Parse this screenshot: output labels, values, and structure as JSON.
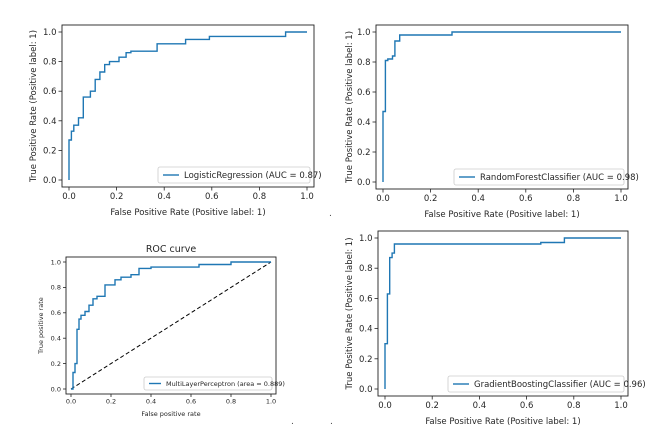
{
  "chart_data": [
    {
      "type": "line",
      "title": "",
      "xlabel": "False Positive Rate (Positive label: 1)",
      "ylabel": "True Positive Rate (Positive label: 1)",
      "xlim": [
        0,
        1
      ],
      "ylim": [
        0,
        1
      ],
      "xticks": [
        "0.0",
        "0.2",
        "0.4",
        "0.6",
        "0.8",
        "1.0"
      ],
      "yticks": [
        "0.0",
        "0.2",
        "0.4",
        "0.6",
        "0.8",
        "1.0"
      ],
      "grid": false,
      "legend_position": "lower-right",
      "series": [
        {
          "name": "LogisticRegression (AUC = 0.87)",
          "color": "#1f77b4",
          "x": [
            0,
            0,
            0.01,
            0.01,
            0.02,
            0.02,
            0.04,
            0.04,
            0.06,
            0.06,
            0.09,
            0.09,
            0.11,
            0.11,
            0.13,
            0.13,
            0.15,
            0.15,
            0.17,
            0.17,
            0.21,
            0.21,
            0.24,
            0.24,
            0.26,
            0.26,
            0.37,
            0.37,
            0.49,
            0.49,
            0.59,
            0.59,
            0.91,
            0.91,
            1.0
          ],
          "y": [
            0,
            0.27,
            0.27,
            0.33,
            0.33,
            0.37,
            0.37,
            0.42,
            0.42,
            0.56,
            0.56,
            0.6,
            0.6,
            0.68,
            0.68,
            0.73,
            0.73,
            0.78,
            0.78,
            0.8,
            0.8,
            0.83,
            0.83,
            0.86,
            0.86,
            0.87,
            0.87,
            0.92,
            0.92,
            0.95,
            0.95,
            0.97,
            0.97,
            1.0,
            1.0
          ]
        }
      ]
    },
    {
      "type": "line",
      "title": "",
      "xlabel": "False Positive Rate (Positive label: 1)",
      "ylabel": "True Positive Rate (Positive label: 1)",
      "xlim": [
        0,
        1
      ],
      "ylim": [
        0,
        1
      ],
      "xticks": [
        "0.0",
        "0.2",
        "0.4",
        "0.6",
        "0.8",
        "1.0"
      ],
      "yticks": [
        "0.0",
        "0.2",
        "0.4",
        "0.6",
        "0.8",
        "1.0"
      ],
      "grid": false,
      "legend_position": "lower-right",
      "series": [
        {
          "name": "RandomForestClassifier (AUC = 0.98)",
          "color": "#1f77b4",
          "x": [
            0,
            0,
            0.01,
            0.01,
            0.02,
            0.02,
            0.04,
            0.04,
            0.05,
            0.05,
            0.07,
            0.07,
            0.29,
            0.29,
            1.0
          ],
          "y": [
            0,
            0.47,
            0.47,
            0.81,
            0.81,
            0.82,
            0.82,
            0.84,
            0.84,
            0.94,
            0.94,
            0.98,
            0.98,
            1.0,
            1.0
          ]
        }
      ]
    },
    {
      "type": "line",
      "title": "ROC curve",
      "xlabel": "False positive rate",
      "ylabel": "True positive rate",
      "xlim": [
        0,
        1
      ],
      "ylim": [
        0,
        1
      ],
      "xticks": [
        "0.0",
        "0.2",
        "0.4",
        "0.6",
        "0.8",
        "1.0"
      ],
      "yticks": [
        "0.0",
        "0.2",
        "0.4",
        "0.6",
        "0.8",
        "1.0"
      ],
      "grid": false,
      "legend_position": "lower-right",
      "series": [
        {
          "name": "MultiLayerPerceptron (area = 0.889)",
          "color": "#1f77b4",
          "x": [
            0,
            0.01,
            0.01,
            0.02,
            0.02,
            0.03,
            0.03,
            0.04,
            0.04,
            0.05,
            0.05,
            0.07,
            0.07,
            0.09,
            0.09,
            0.11,
            0.11,
            0.13,
            0.13,
            0.17,
            0.17,
            0.22,
            0.22,
            0.25,
            0.25,
            0.3,
            0.3,
            0.34,
            0.34,
            0.4,
            0.4,
            0.64,
            0.64,
            0.8,
            0.8,
            1.0
          ],
          "y": [
            0,
            0,
            0.13,
            0.13,
            0.2,
            0.2,
            0.47,
            0.47,
            0.55,
            0.55,
            0.58,
            0.58,
            0.61,
            0.61,
            0.66,
            0.66,
            0.71,
            0.71,
            0.73,
            0.73,
            0.82,
            0.82,
            0.86,
            0.86,
            0.88,
            0.88,
            0.9,
            0.9,
            0.95,
            0.95,
            0.96,
            0.96,
            0.98,
            0.98,
            1.0,
            1.0
          ]
        }
      ],
      "reference_line": {
        "x": [
          0,
          1
        ],
        "y": [
          0,
          1
        ],
        "style": "dashed",
        "color": "#000000"
      }
    },
    {
      "type": "line",
      "title": "",
      "xlabel": "False Positive Rate (Positive label: 1)",
      "ylabel": "True Positive Rate (Positive label: 1)",
      "xlim": [
        0,
        1
      ],
      "ylim": [
        0,
        1
      ],
      "xticks": [
        "0.0",
        "0.2",
        "0.4",
        "0.6",
        "0.8",
        "1.0"
      ],
      "yticks": [
        "0.0",
        "0.2",
        "0.4",
        "0.6",
        "0.8",
        "1.0"
      ],
      "grid": false,
      "legend_position": "lower-right",
      "series": [
        {
          "name": "GradientBoostingClassifier (AUC = 0.96)",
          "color": "#1f77b4",
          "x": [
            0,
            0,
            0.01,
            0.01,
            0.02,
            0.02,
            0.03,
            0.03,
            0.04,
            0.04,
            0.66,
            0.66,
            0.76,
            0.76,
            1.0
          ],
          "y": [
            0,
            0.3,
            0.3,
            0.63,
            0.63,
            0.87,
            0.87,
            0.9,
            0.9,
            0.96,
            0.96,
            0.97,
            0.97,
            1.0,
            1.0
          ]
        }
      ]
    }
  ],
  "stray_marks": [
    ".",
    ".",
    "."
  ]
}
